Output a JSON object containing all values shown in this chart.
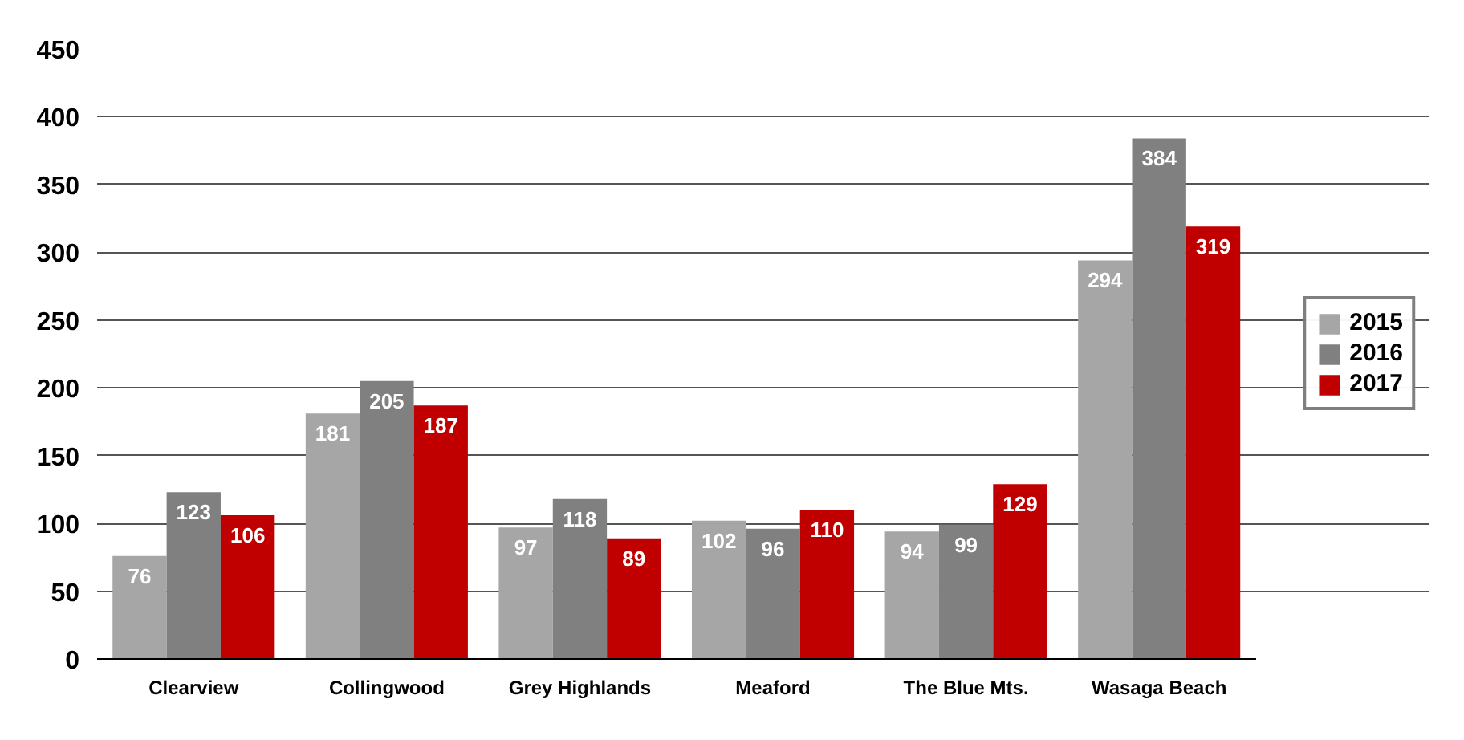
{
  "chart_data": {
    "type": "bar",
    "categories": [
      "Clearview",
      "Collingwood",
      "Grey Highlands",
      "Meaford",
      "The Blue Mts.",
      "Wasaga Beach"
    ],
    "series": [
      {
        "name": "2015",
        "color": "#a6a6a6",
        "values": [
          76,
          181,
          97,
          102,
          94,
          294
        ]
      },
      {
        "name": "2016",
        "color": "#808080",
        "values": [
          123,
          205,
          118,
          96,
          99,
          384
        ]
      },
      {
        "name": "2017",
        "color": "#c00000",
        "values": [
          106,
          187,
          89,
          110,
          129,
          319
        ]
      }
    ],
    "ylim": [
      0,
      450
    ],
    "yticks": [
      0,
      50,
      100,
      150,
      200,
      250,
      300,
      350,
      400,
      450
    ],
    "grid": "y",
    "legend": "right",
    "data_labels": true
  }
}
